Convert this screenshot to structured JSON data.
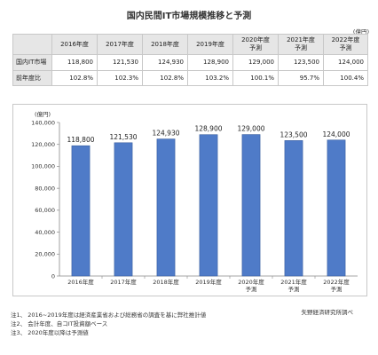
{
  "title": "国内民間IT市場規模推移と予測",
  "unit_label": "(億円)",
  "table": {
    "headers": [
      [
        "2016年度"
      ],
      [
        "2017年度"
      ],
      [
        "2018年度"
      ],
      [
        "2019年度"
      ],
      [
        "2020年度",
        "予測"
      ],
      [
        "2021年度",
        "予測"
      ],
      [
        "2022年度",
        "予測"
      ]
    ],
    "rows": [
      {
        "label": "国内IT市場",
        "values": [
          "118,800",
          "121,530",
          "124,930",
          "128,900",
          "129,000",
          "123,500",
          "124,000"
        ]
      },
      {
        "label": "前年度比",
        "values": [
          "102.8%",
          "102.3%",
          "102.8%",
          "103.2%",
          "100.1%",
          "95.7%",
          "100.4%"
        ]
      }
    ]
  },
  "chart_data": {
    "type": "bar",
    "categories": [
      [
        "2016年度"
      ],
      [
        "2017年度"
      ],
      [
        "2018年度"
      ],
      [
        "2019年度"
      ],
      [
        "2020年度",
        "予測"
      ],
      [
        "2021年度",
        "予測"
      ],
      [
        "2022年度",
        "予測"
      ]
    ],
    "values": [
      118800,
      121530,
      124930,
      128900,
      129000,
      123500,
      124000
    ],
    "data_labels": [
      "118,800",
      "121,530",
      "124,930",
      "128,900",
      "129,000",
      "123,500",
      "124,000"
    ],
    "ylabel": "(億円)",
    "ylim": [
      0,
      140000
    ],
    "yticks": [
      0,
      20000,
      40000,
      60000,
      80000,
      100000,
      120000,
      140000
    ],
    "ytick_labels": [
      "0",
      "20,000",
      "40,000",
      "60,000",
      "80,000",
      "100,000",
      "120,000",
      "140,000"
    ],
    "bar_color": "#4f7bc8",
    "bar_edge_color": "#3a5f9f",
    "grid": false
  },
  "notes": [
    "注1、 2016~2019年度は経済産業省および総務省の調査を基に弊社推計値",
    "注2、 会計年度、自コIT投資額ベース",
    "注3、 2020年度以降は予測値"
  ],
  "source": "矢野経済研究所調べ"
}
